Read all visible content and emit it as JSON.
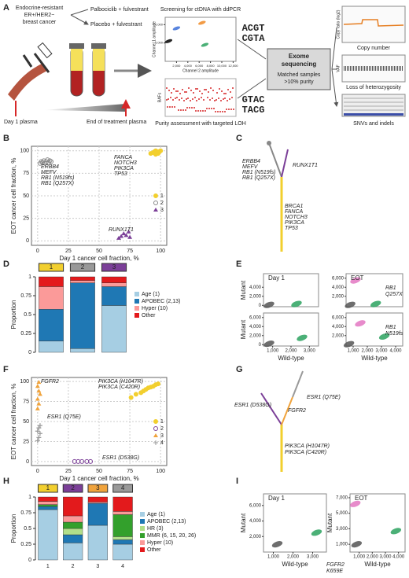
{
  "panel_labels": [
    "A",
    "B",
    "C",
    "D",
    "E",
    "F",
    "G",
    "H",
    "I"
  ],
  "panel_a": {
    "cohort": [
      "Endocrine-resistant",
      "ER+/HER2−",
      "breast cancer"
    ],
    "arms": [
      "Palbociclib + fulvestrant",
      "Placebo + fulvestrant"
    ],
    "day1": "Day 1 plasma",
    "eot": "End of treatment plasma",
    "screen_title": "Screening for ctDNA with ddPCR",
    "screen_xlabel": "Channel 2 amplitude",
    "screen_ylabel": "Channel 1 amplitude",
    "loh_title": "Purity assessment with targeted LOH",
    "loh_ylabel": "BAFs",
    "seq_top": [
      "ACGT",
      "CGTA"
    ],
    "seq_bottom": [
      "GTAC",
      "TACG"
    ],
    "exome": [
      "Exome",
      "sequencing"
    ],
    "matched": [
      "Matched samples",
      ">10% purity"
    ],
    "cn": "Copy number",
    "cn_ylabel": "Copy ratio (log2)",
    "loh": "Loss of heterozygosity",
    "vaf": "VAF",
    "snv": "SNVs and indels"
  },
  "tree_c": {
    "left": [
      "ERBB4",
      "MEFV",
      "RB1 (N519fs)",
      "RB1 (Q257X)"
    ],
    "right": [
      "RUNX1T1"
    ],
    "trunk": [
      "BRCA1",
      "FANCA",
      "NOTCH3",
      "PIK3CA",
      "TP53"
    ]
  },
  "tree_g": {
    "left": [
      "ESR1 (D538G)"
    ],
    "top": [
      "ESR1 (Q75E)"
    ],
    "middle": [
      "FGFR2"
    ],
    "trunk": [
      "PIK3CA (H1047R)",
      "PIK3CA (C420R)"
    ]
  },
  "chart_data": [
    {
      "type": "scatter",
      "xlabel": "Day 1 cancer cell fraction, %",
      "ylabel": "EOT cancer cell fraction, %",
      "xlim": [
        -5,
        105
      ],
      "ylim": [
        -5,
        105
      ],
      "xticks": [
        0,
        25,
        50,
        75,
        100
      ],
      "yticks": [
        0,
        25,
        50,
        75,
        100
      ],
      "grid": true,
      "legend": "right",
      "series": [
        {
          "name": "1",
          "color": "#f2cf2e",
          "marker": "circle",
          "x": [
            92,
            94,
            95,
            96,
            97,
            98,
            99,
            100,
            96,
            98
          ],
          "values": [
            97,
            98,
            99,
            100,
            98,
            97,
            99,
            100,
            96,
            99
          ]
        },
        {
          "name": "2",
          "color": "#888888",
          "marker": "open-circle",
          "x": [
            2,
            3,
            4,
            5,
            6,
            7,
            8,
            9,
            10,
            11
          ],
          "values": [
            86,
            88,
            87,
            89,
            86,
            88,
            90,
            87,
            89,
            88
          ]
        },
        {
          "name": "3",
          "color": "#7b3f98",
          "marker": "triangle",
          "x": [
            66,
            68,
            70,
            72,
            74,
            75
          ],
          "values": [
            3,
            5,
            8,
            6,
            10,
            4
          ]
        }
      ],
      "annotations": [
        {
          "lines": [
            "ERBB4",
            "MEFV",
            "RB1 (N519fs)",
            "RB1 (Q257X)"
          ]
        },
        {
          "lines": [
            "FANCA",
            "NOTCH3",
            "PIK3CA",
            "TP53"
          ]
        },
        {
          "lines": [
            "RUNX1T1"
          ]
        }
      ]
    },
    {
      "type": "bar",
      "ylabel": "Proportion",
      "ylim": [
        0,
        1
      ],
      "yticks": [
        0,
        0.25,
        0.5,
        0.75,
        1
      ],
      "categories": [
        "1",
        "2",
        "3"
      ],
      "category_colors": [
        "#f2cf2e",
        "#999999",
        "#7b3f98"
      ],
      "legend": "right",
      "series": [
        {
          "name": "Age (1)",
          "color": "#a6cee3",
          "values": [
            0.15,
            0.05,
            0.62
          ]
        },
        {
          "name": "APOBEC (2,13)",
          "color": "#1f78b4",
          "values": [
            0.42,
            0.87,
            0.25
          ]
        },
        {
          "name": "Hyper (10)",
          "color": "#fb9a99",
          "values": [
            0.3,
            0.03,
            0.05
          ]
        },
        {
          "name": "Other",
          "color": "#e31a1c",
          "values": [
            0.13,
            0.05,
            0.08
          ]
        }
      ]
    },
    {
      "type": "scatter",
      "xlabel": "Day 1 cancer cell fraction, %",
      "ylabel": "EOT cancer cell fraction, %",
      "xlim": [
        -5,
        105
      ],
      "ylim": [
        -5,
        105
      ],
      "xticks": [
        0,
        25,
        50,
        75,
        100
      ],
      "yticks": [
        0,
        25,
        50,
        75,
        100
      ],
      "grid": true,
      "legend": "right",
      "series": [
        {
          "name": "1",
          "color": "#f2cf2e",
          "marker": "circle",
          "x": [
            76,
            80,
            84,
            86,
            88,
            90,
            92,
            94,
            96,
            98
          ],
          "values": [
            80,
            84,
            86,
            88,
            90,
            92,
            93,
            94,
            96,
            97
          ]
        },
        {
          "name": "2",
          "color": "#7b3f98",
          "marker": "open-circle",
          "x": [
            30,
            33,
            36,
            40,
            43
          ],
          "values": [
            0,
            0,
            0,
            0,
            0
          ]
        },
        {
          "name": "3",
          "color": "#f0a33c",
          "marker": "triangle",
          "x": [
            0,
            1,
            0,
            2,
            1,
            0,
            1
          ],
          "values": [
            66,
            72,
            78,
            84,
            88,
            94,
            99
          ]
        },
        {
          "name": "4",
          "color": "#999999",
          "marker": "plus",
          "x": [
            0,
            1,
            2,
            0,
            1,
            2
          ],
          "values": [
            26,
            30,
            35,
            38,
            42,
            45
          ]
        }
      ],
      "annotations": [
        {
          "lines": [
            "FGFR2"
          ]
        },
        {
          "lines": [
            "PIK3CA (H1047R)",
            "PIK3CA (C420R)"
          ]
        },
        {
          "lines": [
            "ESR1 (Q75E)"
          ]
        },
        {
          "lines": [
            "ESR1 (D538G)"
          ]
        }
      ]
    },
    {
      "type": "bar",
      "ylabel": "Proportion",
      "ylim": [
        0,
        1
      ],
      "yticks": [
        0,
        0.25,
        0.5,
        0.75,
        1
      ],
      "categories": [
        "1",
        "2",
        "3",
        "4"
      ],
      "category_colors": [
        "#f2cf2e",
        "#7b3f98",
        "#f0a33c",
        "#999999"
      ],
      "legend": "right",
      "xtick_labels": true,
      "series": [
        {
          "name": "Age (1)",
          "color": "#a6cee3",
          "values": [
            0.8,
            0.27,
            0.55,
            0.25
          ]
        },
        {
          "name": "APOBEC (2,13)",
          "color": "#1f78b4",
          "values": [
            0.05,
            0.13,
            0.35,
            0.07
          ]
        },
        {
          "name": "HR (3)",
          "color": "#b2df8a",
          "values": [
            0,
            0.1,
            0,
            0.05
          ]
        },
        {
          "name": "MMR (6, 15, 20, 26)",
          "color": "#33a02c",
          "values": [
            0.03,
            0.1,
            0,
            0.35
          ]
        },
        {
          "name": "Hyper (10)",
          "color": "#fb9a99",
          "values": [
            0.05,
            0.1,
            0.02,
            0.05
          ]
        },
        {
          "name": "Other",
          "color": "#e31a1c",
          "values": [
            0.07,
            0.3,
            0.08,
            0.23
          ]
        }
      ]
    },
    {
      "type": "ddpcr",
      "plots": [
        {
          "title": "Day 1",
          "ylabel": "Mutant",
          "xlim": [
            500,
            3500
          ],
          "ylim": [
            -300,
            7000
          ],
          "xticks": [],
          "yticks": [
            0,
            {
              "value": 2000,
              "label": "2,000"
            },
            {
              "value": 4000,
              "label": "4,000"
            }
          ],
          "clusters": [
            {
              "x": 800,
              "y": 100,
              "color": "#555555"
            },
            {
              "x": 2300,
              "y": 300,
              "color": "#2ca25f"
            }
          ]
        },
        {
          "title": "EOT",
          "xlim": [
            300,
            4500
          ],
          "ylim": [
            -300,
            7000
          ],
          "xticks": [],
          "yticks": [
            {
              "value": 2000,
              "label": "2,000"
            },
            {
              "value": 4000,
              "label": "4,000"
            },
            {
              "value": 6000,
              "label": "6,000"
            }
          ],
          "note": [
            "RB1",
            "Q257X"
          ],
          "clusters": [
            {
              "x": 600,
              "y": 100,
              "color": "#555555"
            },
            {
              "x": 1000,
              "y": 5500,
              "color": "#e377c2"
            },
            {
              "x": 2500,
              "y": 300,
              "color": "#2ca25f"
            }
          ]
        },
        {
          "ylabel": "Mutant",
          "xlabel": "Wild-type",
          "xlim": [
            500,
            3500
          ],
          "ylim": [
            -300,
            7000
          ],
          "xticks": [
            {
              "value": 1000,
              "label": "1,000"
            },
            {
              "value": 2000,
              "label": "2,000"
            },
            {
              "value": 3000,
              "label": "3,000"
            }
          ],
          "yticks": [
            0,
            {
              "value": 2000,
              "label": "2,000"
            },
            {
              "value": 4000,
              "label": "4,000"
            },
            {
              "value": 6000,
              "label": "6,000"
            }
          ],
          "clusters": [
            {
              "x": 800,
              "y": 200,
              "color": "#555555"
            },
            {
              "x": 2600,
              "y": 1500,
              "color": "#2ca25f"
            }
          ]
        },
        {
          "xlabel": "Wild-type",
          "xlim": [
            500,
            4500
          ],
          "ylim": [
            -300,
            7000
          ],
          "xticks": [
            {
              "value": 1000,
              "label": "1,000"
            },
            {
              "value": 2000,
              "label": "2,000"
            },
            {
              "value": 3000,
              "label": "3,000"
            },
            {
              "value": 4000,
              "label": "4,000"
            }
          ],
          "yticks": [
            {
              "value": 2000,
              "label": "2,000"
            },
            {
              "value": 4000,
              "label": "4,000"
            },
            {
              "value": 6000,
              "label": "6,000"
            }
          ],
          "note": [
            "RB1",
            "N519fs"
          ],
          "clusters": [
            {
              "x": 700,
              "y": 100,
              "color": "#555555"
            },
            {
              "x": 1500,
              "y": 4700,
              "color": "#e377c2"
            },
            {
              "x": 3200,
              "y": 1800,
              "color": "#2ca25f"
            }
          ]
        }
      ]
    },
    {
      "type": "ddpcr",
      "plots": [
        {
          "title": "Day 1",
          "ylabel": "Mutant",
          "xlabel": "Wild-type",
          "xlim": [
            500,
            3700
          ],
          "ylim": [
            0,
            7500
          ],
          "xticks": [
            {
              "value": 1000,
              "label": "1,000"
            },
            {
              "value": 2000,
              "label": "2,000"
            },
            {
              "value": 3000,
              "label": "3,000"
            }
          ],
          "yticks": [
            {
              "value": 2000,
              "label": "2,000"
            },
            {
              "value": 4000,
              "label": "4,000"
            },
            {
              "value": 6000,
              "label": "6,000"
            }
          ],
          "clusters": [
            {
              "x": 1200,
              "y": 1000,
              "color": "#555555"
            },
            {
              "x": 3200,
              "y": 2500,
              "color": "#2ca25f"
            }
          ]
        },
        {
          "title": "EOT",
          "ylabel": "Mutant",
          "xlabel": "Wild-type",
          "xlim": [
            300,
            4500
          ],
          "ylim": [
            0,
            7500
          ],
          "xticks": [
            {
              "value": 1000,
              "label": "1,000"
            },
            {
              "value": 2000,
              "label": "2,000"
            },
            {
              "value": 3000,
              "label": "3,000"
            },
            {
              "value": 4000,
              "label": "4,000"
            }
          ],
          "yticks": [
            {
              "value": 1000,
              "label": "1,000"
            },
            {
              "value": 3000,
              "label": "3,000"
            },
            {
              "value": 5000,
              "label": "5,000"
            },
            {
              "value": 7000,
              "label": "7,000"
            }
          ],
          "note": [
            "FGFR2",
            "K659E"
          ],
          "clusters": [
            {
              "x": 700,
              "y": 6200,
              "color": "#e377c2"
            },
            {
              "x": 800,
              "y": 1000,
              "color": "#555555"
            },
            {
              "x": 3800,
              "y": 2700,
              "color": "#2ca25f"
            }
          ]
        }
      ]
    },
    {
      "type": "ddpcr",
      "plots": [
        {
          "xlim": [
            0,
            12500
          ],
          "ylim": [
            0,
            12000
          ],
          "xticks": [
            {
              "value": 2000,
              "label": "2,000"
            },
            {
              "value": 4000,
              "label": "4,000"
            },
            {
              "value": 6000,
              "label": "6,000"
            },
            {
              "value": 8000,
              "label": "8,000"
            },
            {
              "value": 10000,
              "label": "10,000"
            },
            {
              "value": 12000,
              "label": "12,000"
            }
          ],
          "yticks": [
            {
              "value": 5000,
              "label": "5,000"
            },
            {
              "value": 10000,
              "label": "10,000"
            }
          ],
          "clusters": [
            {
              "x": 600,
              "y": 5500,
              "color": "#000000"
            },
            {
              "x": 2000,
              "y": 9000,
              "color": "#3b6fd8"
            },
            {
              "x": 6500,
              "y": 10500,
              "color": "#f08a24"
            },
            {
              "x": 7000,
              "y": 4500,
              "color": "#2ca25f"
            }
          ]
        }
      ]
    }
  ]
}
